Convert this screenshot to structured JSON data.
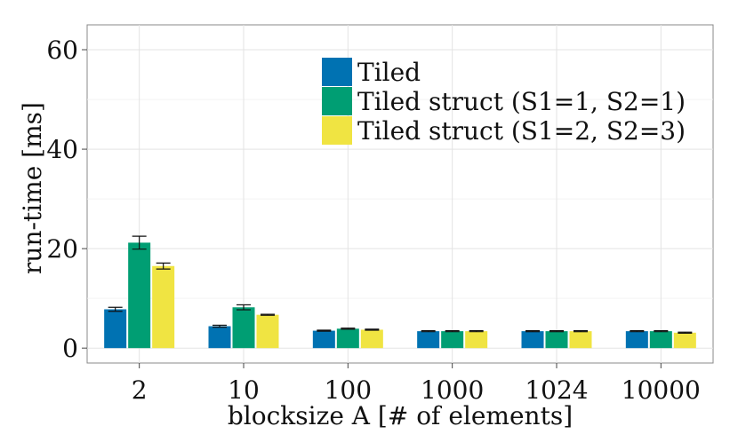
{
  "chart_data": {
    "type": "bar",
    "xlabel": "blocksize A [# of elements]",
    "ylabel": "run-time [ms]",
    "ylim": [
      -3,
      65
    ],
    "yticks": [
      0,
      20,
      40,
      60
    ],
    "grid": true,
    "legend_position": "top-center",
    "categories": [
      "2",
      "10",
      "100",
      "1000",
      "1024",
      "10000"
    ],
    "series": [
      {
        "name": "Tiled",
        "color": "#0072B2",
        "values": [
          7.8,
          4.4,
          3.5,
          3.4,
          3.4,
          3.4
        ],
        "errors": [
          0.4,
          0.2,
          0.1,
          0.1,
          0.1,
          0.1
        ]
      },
      {
        "name": "Tiled struct (S1=1, S2=1)",
        "color": "#009E73",
        "values": [
          21.2,
          8.2,
          3.9,
          3.4,
          3.4,
          3.4
        ],
        "errors": [
          1.3,
          0.5,
          0.1,
          0.1,
          0.1,
          0.1
        ]
      },
      {
        "name": "Tiled struct (S1=2, S2=3)",
        "color": "#F0E442",
        "values": [
          16.5,
          6.7,
          3.7,
          3.4,
          3.4,
          3.1
        ],
        "errors": [
          0.6,
          0.1,
          0.1,
          0.1,
          0.1,
          0.1
        ]
      }
    ]
  }
}
